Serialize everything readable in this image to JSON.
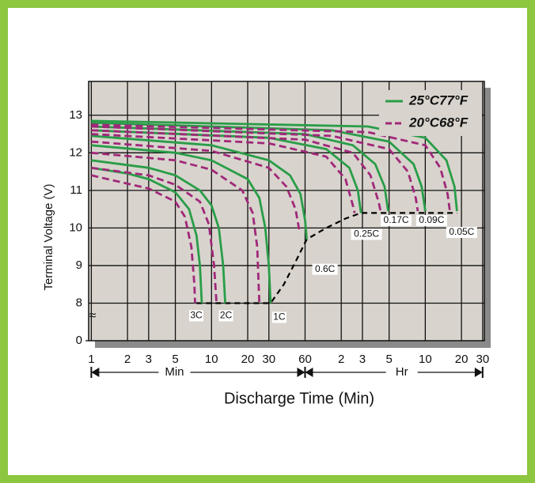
{
  "chart_data": {
    "type": "line",
    "x_label": "Discharge Time (Min)",
    "y_label": "Terminal Voltage (V)",
    "x_scale": "log",
    "xlim": [
      0.95,
      1860
    ],
    "ylim": [
      0,
      13.9
    ],
    "y_break": [
      0,
      7
    ],
    "y_break_label": "≈",
    "grid": true,
    "legend": "upper right",
    "xticks": [
      1,
      2,
      3,
      5,
      10,
      20,
      30,
      60,
      {
        "value": 120,
        "label": "2"
      },
      {
        "value": 180,
        "label": "3"
      },
      {
        "value": 300,
        "label": "5"
      },
      {
        "value": 600,
        "label": "10"
      },
      {
        "value": 1200,
        "label": "20"
      },
      {
        "value": 1800,
        "label": "30"
      }
    ],
    "yticks": [
      0,
      8,
      9,
      10,
      11,
      12,
      13
    ],
    "x_spans": [
      {
        "label": "Min",
        "from": 1,
        "to": 60
      },
      {
        "label": "Hr",
        "from": 60,
        "to": 1800
      }
    ],
    "curve_labels": [
      "3C",
      "2C",
      "1C",
      "0.6C",
      "0.25C",
      "0.17C",
      "0.09C",
      "0.05C"
    ],
    "series": [
      {
        "name": "25°C77°F",
        "color": "#2a9d48",
        "dashed": false,
        "curves": [
          {
            "x": [
              1,
              2,
              3,
              5,
              6.5,
              7.5,
              8,
              8.3
            ],
            "y": [
              11.6,
              11.45,
              11.3,
              10.95,
              10.5,
              9.8,
              9,
              8
            ]
          },
          {
            "x": [
              1,
              3,
              5,
              8,
              10,
              11.5,
              12.5,
              13
            ],
            "y": [
              11.8,
              11.6,
              11.4,
              11,
              10.6,
              10,
              9,
              8
            ]
          },
          {
            "x": [
              1,
              5,
              10,
              20,
              25,
              28,
              30,
              31
            ],
            "y": [
              12.2,
              12,
              11.8,
              11.3,
              10.8,
              10,
              9,
              8
            ]
          },
          {
            "x": [
              1,
              10,
              30,
              45,
              55,
              60,
              62
            ],
            "y": [
              12.45,
              12.2,
              11.8,
              11.4,
              10.9,
              10.2,
              9.7
            ]
          },
          {
            "x": [
              1,
              30,
              90,
              140,
              165,
              175
            ],
            "y": [
              12.6,
              12.4,
              12.1,
              11.6,
              11,
              10.4
            ]
          },
          {
            "x": [
              1,
              60,
              150,
              230,
              275,
              295
            ],
            "y": [
              12.7,
              12.5,
              12.2,
              11.7,
              11.1,
              10.45
            ]
          },
          {
            "x": [
              1,
              100,
              300,
              480,
              560,
              600
            ],
            "y": [
              12.8,
              12.6,
              12.3,
              11.7,
              11.1,
              10.45
            ]
          },
          {
            "x": [
              1,
              200,
              600,
              900,
              1050,
              1100
            ],
            "y": [
              12.85,
              12.7,
              12.4,
              11.8,
              11.1,
              10.45
            ]
          }
        ]
      },
      {
        "name": "20°C68°F",
        "color": "#a0287a",
        "dashed": true,
        "curves": [
          {
            "x": [
              1,
              3,
              5,
              6,
              6.8,
              7.2,
              7.3
            ],
            "y": [
              11.4,
              11.05,
              10.7,
              10.3,
              9.5,
              8.5,
              8
            ]
          },
          {
            "x": [
              1,
              3,
              5,
              8,
              9.5,
              10.5,
              11
            ],
            "y": [
              11.6,
              11.4,
              11.15,
              10.7,
              10.1,
              9,
              8
            ]
          },
          {
            "x": [
              1,
              5,
              10,
              18,
              22,
              24,
              25
            ],
            "y": [
              12,
              11.8,
              11.55,
              11,
              10.4,
              9.5,
              8
            ]
          },
          {
            "x": [
              1,
              10,
              30,
              42,
              50,
              54
            ],
            "y": [
              12.3,
              12.05,
              11.6,
              11.1,
              10.5,
              9.9
            ]
          },
          {
            "x": [
              1,
              30,
              90,
              130,
              150,
              155
            ],
            "y": [
              12.5,
              12.25,
              11.9,
              11.3,
              10.6,
              10.4
            ]
          },
          {
            "x": [
              1,
              60,
              150,
              210,
              245,
              255
            ],
            "y": [
              12.6,
              12.35,
              12,
              11.4,
              10.7,
              10.45
            ]
          },
          {
            "x": [
              1,
              100,
              300,
              430,
              500,
              520
            ],
            "y": [
              12.7,
              12.45,
              12.1,
              11.5,
              10.8,
              10.45
            ]
          },
          {
            "x": [
              1,
              200,
              600,
              800,
              920,
              960
            ],
            "y": [
              12.75,
              12.55,
              12.2,
              11.6,
              10.9,
              10.45
            ]
          }
        ]
      }
    ],
    "cutoff": {
      "color": "#000000",
      "x": [
        7.5,
        31,
        40,
        50,
        62,
        90,
        130,
        175,
        1100
      ],
      "y": [
        8,
        8,
        8.5,
        9.1,
        9.7,
        10,
        10.25,
        10.4,
        10.4
      ]
    }
  }
}
